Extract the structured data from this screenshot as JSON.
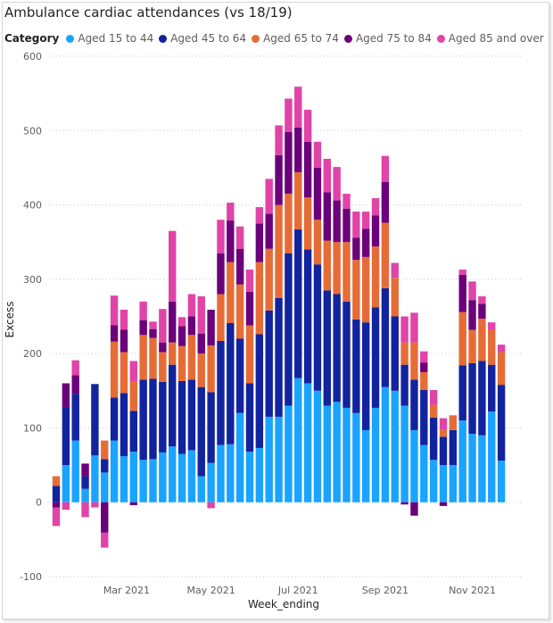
{
  "chart_data": {
    "type": "bar",
    "stacked": true,
    "title": "Ambulance cardiac attendances (vs 18/19)",
    "legend_title": "Category",
    "legend_position": "top-left",
    "xlabel": "Week_ending",
    "ylabel": "Excess",
    "ylim": [
      -100,
      600
    ],
    "yticks": [
      -100,
      0,
      100,
      200,
      300,
      400,
      500,
      600
    ],
    "x_tick_labels": [
      "Mar 2021",
      "May 2021",
      "Jul 2021",
      "Sep 2021",
      "Nov 2021"
    ],
    "grid": true,
    "categories": [
      "2021-01-10",
      "2021-01-17",
      "2021-01-24",
      "2021-01-31",
      "2021-02-07",
      "2021-02-14",
      "2021-02-21",
      "2021-02-28",
      "2021-03-07",
      "2021-03-14",
      "2021-03-21",
      "2021-03-28",
      "2021-04-04",
      "2021-04-11",
      "2021-04-18",
      "2021-04-25",
      "2021-05-02",
      "2021-05-09",
      "2021-05-16",
      "2021-05-23",
      "2021-05-30",
      "2021-06-06",
      "2021-06-13",
      "2021-06-20",
      "2021-06-27",
      "2021-07-04",
      "2021-07-11",
      "2021-07-18",
      "2021-07-25",
      "2021-08-01",
      "2021-08-08",
      "2021-08-15",
      "2021-08-22",
      "2021-08-29",
      "2021-09-05",
      "2021-09-12",
      "2021-09-19",
      "2021-09-26",
      "2021-10-03",
      "2021-10-10",
      "2021-10-17",
      "2021-10-24",
      "2021-10-31",
      "2021-11-07",
      "2021-11-14",
      "2021-11-21",
      "2021-11-28"
    ],
    "series": [
      {
        "name": "Aged 15 to 44",
        "color": "#1aa3ff",
        "values": [
          0,
          50,
          83,
          18,
          63,
          40,
          83,
          62,
          68,
          57,
          58,
          67,
          75,
          65,
          70,
          35,
          53,
          77,
          78,
          120,
          68,
          73,
          115,
          115,
          130,
          167,
          160,
          150,
          130,
          135,
          127,
          120,
          97,
          127,
          155,
          150,
          130,
          97,
          77,
          57,
          50,
          50,
          110,
          92,
          90,
          122,
          56
        ]
      },
      {
        "name": "Aged 45 to 64",
        "color": "#12239e",
        "values": [
          22,
          77,
          63,
          17,
          96,
          18,
          58,
          85,
          55,
          108,
          108,
          95,
          110,
          98,
          95,
          120,
          95,
          140,
          163,
          100,
          92,
          153,
          143,
          160,
          205,
          200,
          180,
          170,
          155,
          145,
          143,
          126,
          145,
          135,
          133,
          100,
          55,
          68,
          74,
          57,
          38,
          47,
          74,
          95,
          100,
          63,
          102
        ]
      },
      {
        "name": "Aged 65 to 74",
        "color": "#e66c37",
        "values": [
          13,
          0,
          0,
          0,
          0,
          25,
          75,
          55,
          40,
          60,
          55,
          40,
          30,
          47,
          60,
          45,
          63,
          63,
          82,
          73,
          78,
          97,
          83,
          125,
          80,
          77,
          70,
          60,
          67,
          70,
          80,
          80,
          88,
          82,
          88,
          52,
          30,
          50,
          24,
          17,
          10,
          20,
          72,
          45,
          57,
          47,
          44
        ]
      },
      {
        "name": "Aged 75 to 84",
        "color": "#6b007b",
        "values": [
          -7,
          33,
          25,
          17,
          0,
          -41,
          22,
          30,
          -4,
          20,
          12,
          13,
          55,
          27,
          25,
          27,
          48,
          55,
          56,
          48,
          45,
          52,
          47,
          67,
          83,
          60,
          75,
          70,
          65,
          56,
          45,
          30,
          38,
          42,
          55,
          0,
          -3,
          -18,
          13,
          0,
          -5,
          0,
          50,
          40,
          20,
          0,
          0
        ]
      },
      {
        "name": "Aged 85 and over",
        "color": "#e044a7",
        "values": [
          -25,
          -10,
          20,
          -20,
          -7,
          -20,
          40,
          27,
          27,
          25,
          10,
          45,
          95,
          12,
          30,
          50,
          -8,
          45,
          24,
          30,
          30,
          22,
          47,
          40,
          45,
          55,
          43,
          35,
          45,
          45,
          20,
          35,
          23,
          23,
          35,
          20,
          35,
          40,
          15,
          20,
          15,
          0,
          7,
          25,
          10,
          10,
          10
        ]
      }
    ]
  }
}
